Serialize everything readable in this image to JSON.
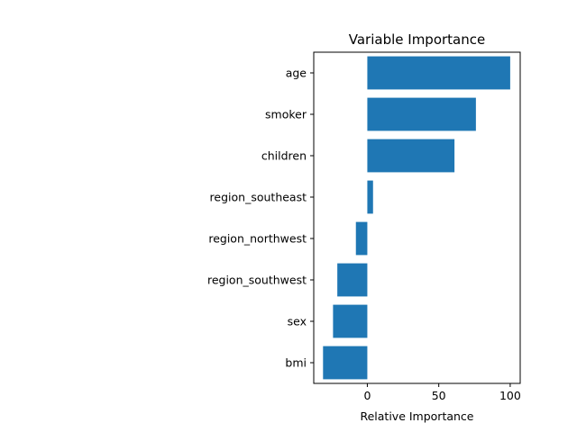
{
  "chart_data": {
    "type": "bar",
    "orientation": "horizontal",
    "title": "Variable Importance",
    "xlabel": "Relative Importance",
    "ylabel": "",
    "categories": [
      "age",
      "smoker",
      "children",
      "region_southeast",
      "region_northwest",
      "region_southwest",
      "sex",
      "bmi"
    ],
    "values": [
      100,
      76,
      61,
      4,
      -8,
      -21,
      -24,
      -31
    ],
    "xlim": [
      -37.5,
      107
    ],
    "xticks": [
      0,
      50,
      100
    ],
    "grid": false,
    "bar_color": "#1f77b4"
  }
}
